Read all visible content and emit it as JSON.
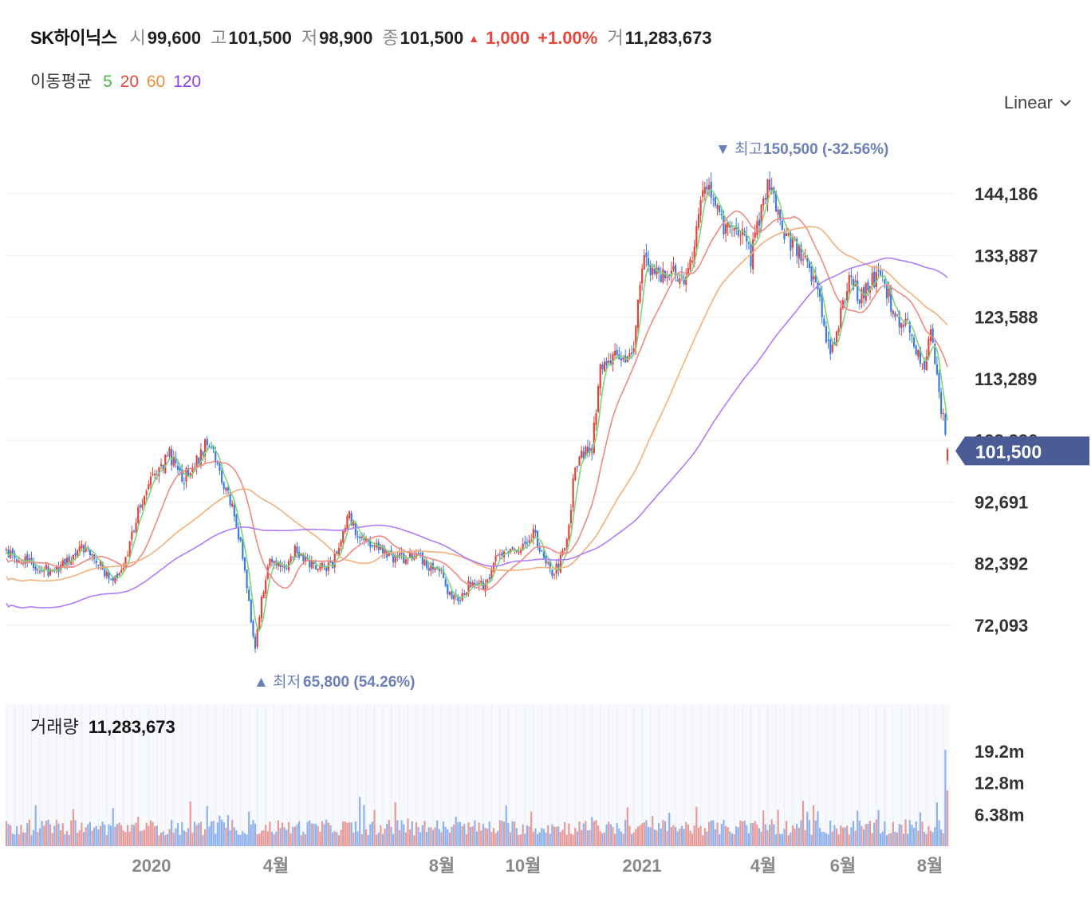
{
  "header": {
    "name": "SK하이닉스",
    "open_label": "시",
    "open": "99,600",
    "high_label": "고",
    "high": "101,500",
    "low_label": "저",
    "low": "98,900",
    "close_label": "종",
    "close": "101,500",
    "change_arrow": "▲",
    "change": "1,000",
    "change_pct": "+1.00%",
    "volume_label": "거",
    "volume": "11,283,673"
  },
  "moving_average": {
    "label": "이동평균",
    "periods": [
      {
        "text": "5",
        "color": "#4cb84a"
      },
      {
        "text": "20",
        "color": "#e5483a"
      },
      {
        "text": "60",
        "color": "#e8913a"
      },
      {
        "text": "120",
        "color": "#8a3ff0"
      }
    ]
  },
  "scale_selector": {
    "label": "Linear",
    "icon": "chevron-down-icon"
  },
  "chart_data": {
    "type": "candlestick",
    "price_axis": {
      "ticks": [
        72093,
        82392,
        92691,
        102990,
        113289,
        123588,
        133887,
        144186
      ],
      "tick_labels": [
        "72,093",
        "82,392",
        "92,691",
        "102,990",
        "113,289",
        "123,588",
        "133,887",
        "144,186"
      ],
      "range": [
        62000,
        154000
      ],
      "current_price": 101500,
      "current_label": "101,500"
    },
    "x_axis": {
      "labels": [
        "2020",
        "4월",
        "8월",
        "10월",
        "2021",
        "4월",
        "6월",
        "8월"
      ]
    },
    "annotations": {
      "high": {
        "arrow": "▼",
        "label": "최고",
        "value": 150500,
        "text": "150,500 (-32.56%)"
      },
      "low": {
        "arrow": "▲",
        "label": "최저",
        "value": 65800,
        "text": "65,800 (54.26%)"
      }
    },
    "price_anchors": [
      [
        0,
        84000
      ],
      [
        8,
        83000
      ],
      [
        16,
        82000
      ],
      [
        22,
        80500
      ],
      [
        30,
        83500
      ],
      [
        38,
        85500
      ],
      [
        44,
        83000
      ],
      [
        50,
        79000
      ],
      [
        56,
        82000
      ],
      [
        60,
        87500
      ],
      [
        66,
        94500
      ],
      [
        72,
        97500
      ],
      [
        78,
        100500
      ],
      [
        84,
        96500
      ],
      [
        90,
        98500
      ],
      [
        96,
        103000
      ],
      [
        100,
        99500
      ],
      [
        104,
        95000
      ],
      [
        108,
        92000
      ],
      [
        112,
        85500
      ],
      [
        116,
        76000
      ],
      [
        119,
        68000
      ],
      [
        122,
        76000
      ],
      [
        126,
        83000
      ],
      [
        132,
        81000
      ],
      [
        138,
        84500
      ],
      [
        144,
        83000
      ],
      [
        150,
        81500
      ],
      [
        156,
        82500
      ],
      [
        160,
        85500
      ],
      [
        164,
        90500
      ],
      [
        168,
        86500
      ],
      [
        174,
        86000
      ],
      [
        180,
        85000
      ],
      [
        186,
        83000
      ],
      [
        192,
        83500
      ],
      [
        198,
        83000
      ],
      [
        204,
        81500
      ],
      [
        208,
        80500
      ],
      [
        212,
        77000
      ],
      [
        216,
        76000
      ],
      [
        220,
        78500
      ],
      [
        224,
        79500
      ],
      [
        228,
        78500
      ],
      [
        232,
        81500
      ],
      [
        236,
        84000
      ],
      [
        240,
        84500
      ],
      [
        244,
        85000
      ],
      [
        248,
        86500
      ],
      [
        252,
        87500
      ],
      [
        256,
        83500
      ],
      [
        260,
        81000
      ],
      [
        264,
        82000
      ],
      [
        268,
        86000
      ],
      [
        272,
        99000
      ],
      [
        276,
        100500
      ],
      [
        280,
        101500
      ],
      [
        284,
        116000
      ],
      [
        288,
        117000
      ],
      [
        292,
        116500
      ],
      [
        296,
        116000
      ],
      [
        300,
        118000
      ],
      [
        304,
        133000
      ],
      [
        308,
        131500
      ],
      [
        312,
        131000
      ],
      [
        316,
        129500
      ],
      [
        320,
        131500
      ],
      [
        324,
        130000
      ],
      [
        328,
        133500
      ],
      [
        332,
        143500
      ],
      [
        336,
        145500
      ],
      [
        340,
        141000
      ],
      [
        344,
        138500
      ],
      [
        348,
        137500
      ],
      [
        352,
        137000
      ],
      [
        356,
        133500
      ],
      [
        360,
        140500
      ],
      [
        364,
        145500
      ],
      [
        368,
        142000
      ],
      [
        372,
        137500
      ],
      [
        376,
        136000
      ],
      [
        380,
        133500
      ],
      [
        384,
        132000
      ],
      [
        388,
        128500
      ],
      [
        392,
        118500
      ],
      [
        396,
        119000
      ],
      [
        400,
        126000
      ],
      [
        404,
        130000
      ],
      [
        408,
        126500
      ],
      [
        412,
        128500
      ],
      [
        416,
        130500
      ],
      [
        420,
        129000
      ],
      [
        424,
        124500
      ],
      [
        428,
        122500
      ],
      [
        432,
        122000
      ],
      [
        436,
        117000
      ],
      [
        440,
        116000
      ],
      [
        442,
        121500
      ],
      [
        444,
        117000
      ],
      [
        446,
        110000
      ],
      [
        448,
        106500
      ],
      [
        450,
        101500
      ]
    ],
    "moving_average_periods": [
      5,
      20,
      60,
      120
    ],
    "volume": {
      "label": "거래량",
      "current": "11,283,673",
      "ticks": [
        6380000,
        12800000,
        19200000
      ],
      "tick_labels": [
        "6.38m",
        "12.8m",
        "19.2m"
      ],
      "max": 24000000
    }
  }
}
